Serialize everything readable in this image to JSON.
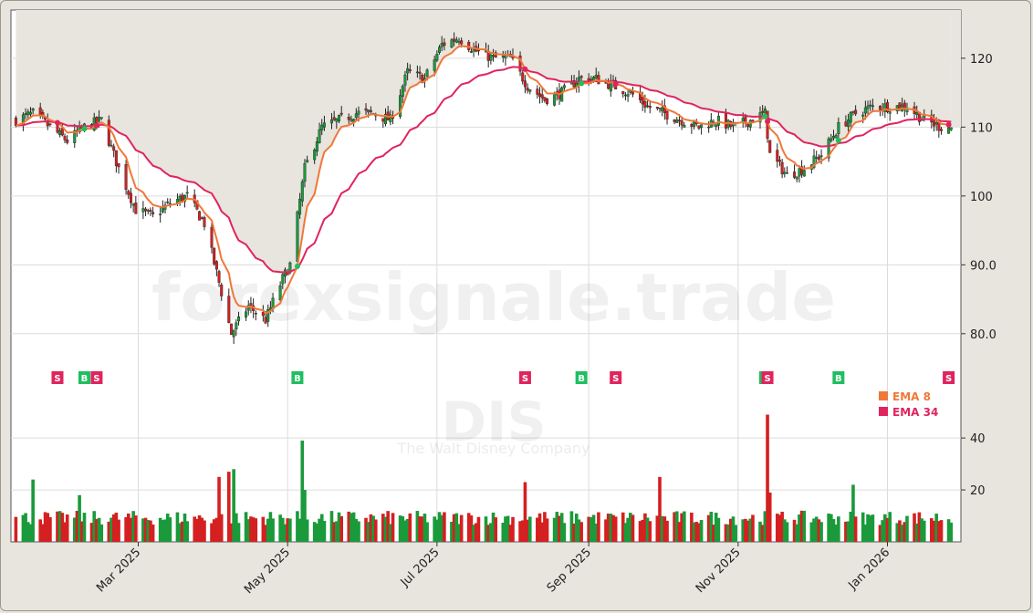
{
  "watermark": {
    "site": "forexsignale.trade",
    "symbol": "DIS",
    "company": "The Walt Disney Company"
  },
  "legend": [
    {
      "label": "EMA 8",
      "color": "#f07838"
    },
    {
      "label": "EMA 34",
      "color": "#e0245e"
    }
  ],
  "chart_data": {
    "type": "candlestick",
    "price_axis": {
      "ylim": [
        76,
        127
      ],
      "ticks": [
        "80.0",
        "90.0",
        "100",
        "110",
        "120"
      ]
    },
    "volume_axis": {
      "ylim": [
        0,
        52
      ],
      "ticks": [
        "20",
        "40"
      ]
    },
    "x_axis": {
      "xlim": [
        "2025-01-08",
        "2026-01-31"
      ],
      "ticks": [
        {
          "date": "2025-03-01",
          "label": "Mar 2025"
        },
        {
          "date": "2025-05-01",
          "label": "May 2025"
        },
        {
          "date": "2025-07-01",
          "label": "Jul 2025"
        },
        {
          "date": "2025-09-01",
          "label": "Sep 2025"
        },
        {
          "date": "2025-11-01",
          "label": "Nov 2025"
        },
        {
          "date": "2026-01-01",
          "label": "Jan 2026"
        }
      ]
    },
    "grid": true,
    "price_anchors": [
      [
        "2025-01-10",
        111
      ],
      [
        "2025-01-17",
        112
      ],
      [
        "2025-01-24",
        110
      ],
      [
        "2025-01-31",
        108
      ],
      [
        "2025-02-07",
        110
      ],
      [
        "2025-02-14",
        111
      ],
      [
        "2025-02-21",
        104
      ],
      [
        "2025-02-28",
        98
      ],
      [
        "2025-03-07",
        97
      ],
      [
        "2025-03-14",
        99
      ],
      [
        "2025-03-21",
        100
      ],
      [
        "2025-03-28",
        96
      ],
      [
        "2025-04-04",
        86
      ],
      [
        "2025-04-08",
        80
      ],
      [
        "2025-04-15",
        84
      ],
      [
        "2025-04-22",
        82
      ],
      [
        "2025-04-29",
        88
      ],
      [
        "2025-05-02",
        90
      ],
      [
        "2025-05-08",
        104
      ],
      [
        "2025-05-15",
        110
      ],
      [
        "2025-05-22",
        111
      ],
      [
        "2025-05-29",
        112
      ],
      [
        "2025-06-05",
        112
      ],
      [
        "2025-06-12",
        111
      ],
      [
        "2025-06-19",
        118
      ],
      [
        "2025-06-26",
        117
      ],
      [
        "2025-07-03",
        122
      ],
      [
        "2025-07-10",
        123
      ],
      [
        "2025-07-17",
        121
      ],
      [
        "2025-07-24",
        120
      ],
      [
        "2025-07-31",
        120
      ],
      [
        "2025-08-07",
        116
      ],
      [
        "2025-08-14",
        114
      ],
      [
        "2025-08-21",
        115
      ],
      [
        "2025-08-28",
        117
      ],
      [
        "2025-09-04",
        117
      ],
      [
        "2025-09-11",
        116
      ],
      [
        "2025-09-18",
        115
      ],
      [
        "2025-09-25",
        113
      ],
      [
        "2025-10-02",
        112
      ],
      [
        "2025-10-09",
        111
      ],
      [
        "2025-10-16",
        110
      ],
      [
        "2025-10-23",
        111
      ],
      [
        "2025-10-30",
        110
      ],
      [
        "2025-11-06",
        111
      ],
      [
        "2025-11-12",
        112
      ],
      [
        "2025-11-14",
        106
      ],
      [
        "2025-11-21",
        103
      ],
      [
        "2025-11-28",
        104
      ],
      [
        "2025-12-05",
        106
      ],
      [
        "2025-12-12",
        110
      ],
      [
        "2025-12-19",
        112
      ],
      [
        "2025-12-26",
        113
      ],
      [
        "2026-01-02",
        113
      ],
      [
        "2026-01-09",
        113
      ],
      [
        "2026-01-16",
        111
      ],
      [
        "2026-01-23",
        110
      ]
    ],
    "volume_spikes": [
      [
        "2025-01-17",
        24
      ],
      [
        "2025-02-05",
        18
      ],
      [
        "2025-04-03",
        25
      ],
      [
        "2025-04-07",
        27
      ],
      [
        "2025-04-09",
        28
      ],
      [
        "2025-05-07",
        39
      ],
      [
        "2025-05-08",
        20
      ],
      [
        "2025-08-06",
        23
      ],
      [
        "2025-09-30",
        25
      ],
      [
        "2025-11-13",
        49
      ],
      [
        "2025-11-14",
        19
      ],
      [
        "2025-12-18",
        22
      ]
    ],
    "signals": [
      {
        "date": "2025-01-27",
        "type": "S"
      },
      {
        "date": "2025-02-07",
        "type": "B"
      },
      {
        "date": "2025-02-12",
        "type": "S"
      },
      {
        "date": "2025-05-05",
        "type": "B"
      },
      {
        "date": "2025-08-06",
        "type": "S"
      },
      {
        "date": "2025-08-30",
        "type": "B"
      },
      {
        "date": "2025-09-12",
        "type": "S"
      },
      {
        "date": "2025-11-12",
        "type": "B"
      },
      {
        "date": "2025-11-13",
        "type": "S"
      },
      {
        "date": "2025-12-12",
        "type": "B"
      },
      {
        "date": "2026-01-26",
        "type": "S"
      }
    ],
    "series": [
      {
        "name": "EMA 8",
        "period": 8,
        "color": "#f07838"
      },
      {
        "name": "EMA 34",
        "period": 34,
        "color": "#e0245e"
      }
    ],
    "last_price": 110
  }
}
